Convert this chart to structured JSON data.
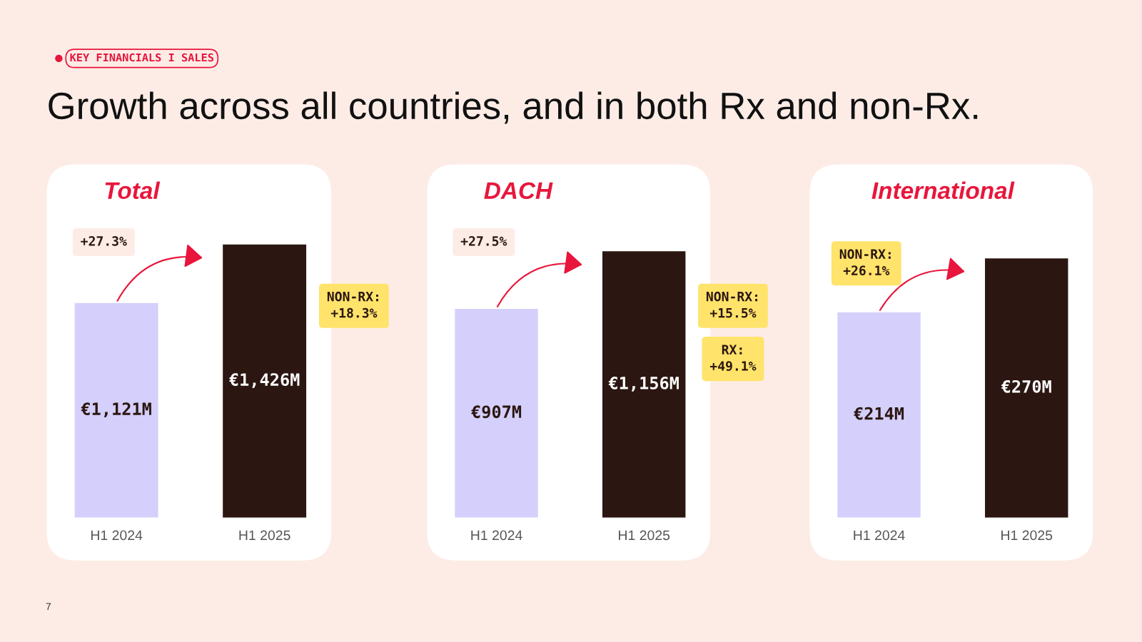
{
  "chart_data": [
    {
      "type": "other",
      "subtitle": "KEY FINANCIALS I SALES",
      "title": "Growth across all countries, and in both Rx and non-Rx.",
      "annotations": [
        "7"
      ]
    },
    {
      "type": "bar",
      "title": "Total",
      "categories": [
        "H1 2024",
        "H1 2025"
      ],
      "values": [
        1121,
        1426
      ],
      "colors": [
        "#d4d0fb",
        "#2b1611"
      ],
      "value_labels": [
        "€1,121M",
        "€1,426M"
      ],
      "ylim": [
        0,
        1840
      ],
      "tick_labels": "x",
      "annotations": [
        "+27.3%",
        "NON-RX:\n+18.3%"
      ]
    },
    {
      "type": "bar",
      "title": "DACH",
      "categories": [
        "H1 2024",
        "H1 2025"
      ],
      "values": [
        907,
        1156
      ],
      "colors": [
        "#d4d0fb",
        "#2b1611"
      ],
      "value_labels": [
        "€907M",
        "€1,156M"
      ],
      "ylim": [
        0,
        1530
      ],
      "tick_labels": "x",
      "annotations": [
        "+27.5%",
        "NON-RX:\n+15.5%",
        "RX:\n+49.1%"
      ]
    },
    {
      "type": "bar",
      "title": "International",
      "categories": [
        "H1 2024",
        "H1 2025"
      ],
      "values": [
        214,
        270
      ],
      "colors": [
        "#d4d0fb",
        "#2b1611"
      ],
      "value_labels": [
        "€214M",
        "€270M"
      ],
      "ylim": [
        0,
        367
      ],
      "tick_labels": "x",
      "annotations": [
        "NON-RX:\n+26.1%"
      ]
    }
  ]
}
